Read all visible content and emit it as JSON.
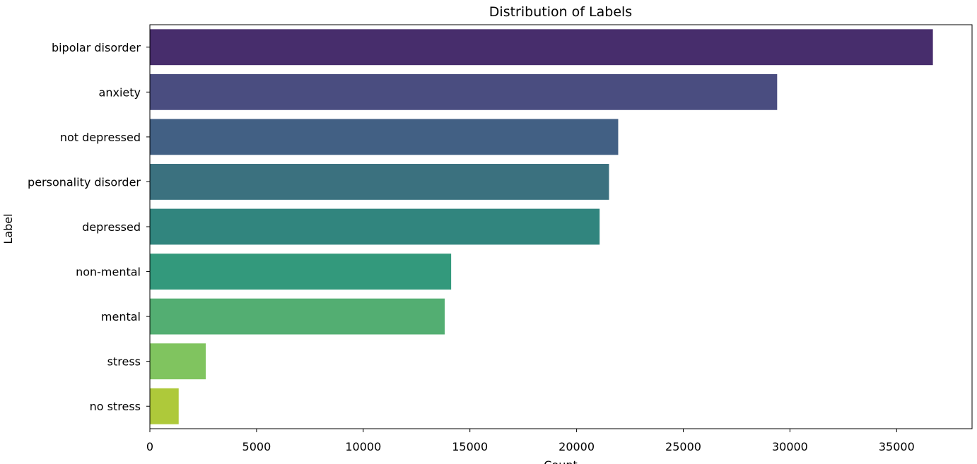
{
  "chart_data": {
    "type": "bar",
    "orientation": "horizontal",
    "title": "Distribution of Labels",
    "xlabel": "Count",
    "ylabel": "Label",
    "categories": [
      "bipolar disorder",
      "anxiety",
      "not depressed",
      "personality disorder",
      "depressed",
      "non-mental",
      "mental",
      "stress",
      "no stress"
    ],
    "values": [
      36700,
      29400,
      21950,
      21520,
      21080,
      14120,
      13820,
      2620,
      1350
    ],
    "colors": [
      "#472d6c",
      "#4a4d80",
      "#426084",
      "#3b717f",
      "#31857e",
      "#33997c",
      "#53ae72",
      "#80c45f",
      "#aec93a"
    ],
    "xticks": [
      0,
      5000,
      10000,
      15000,
      20000,
      25000,
      30000,
      35000
    ],
    "xlim": [
      0,
      38535
    ],
    "grid": false,
    "legend": "none"
  }
}
